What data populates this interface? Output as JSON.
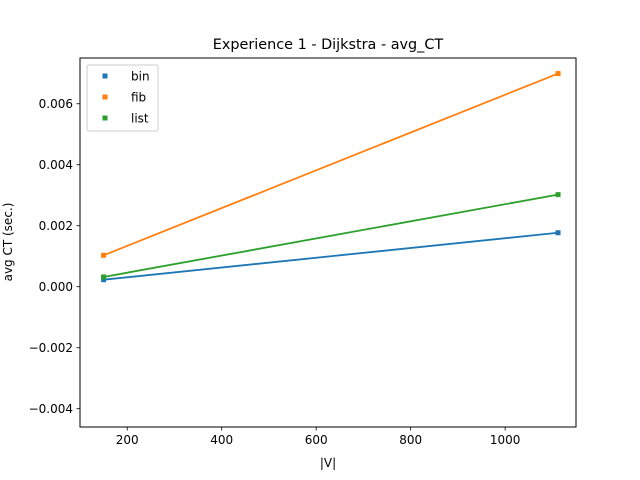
{
  "chart_data": {
    "type": "line",
    "title": "Experience 1 - Dijkstra - avg_CT",
    "xlabel": "|V|",
    "ylabel": "avg CT (sec.)",
    "xlim": [
      100,
      1150
    ],
    "ylim": [
      -0.0046,
      0.0075
    ],
    "xticks": [
      200,
      400,
      600,
      800,
      1000
    ],
    "xtick_labels": [
      "200",
      "400",
      "600",
      "800",
      "1000"
    ],
    "yticks": [
      -0.004,
      -0.002,
      0.0,
      0.002,
      0.004,
      0.006
    ],
    "ytick_labels": [
      "−0.004",
      "−0.002",
      "0.000",
      "0.002",
      "0.004",
      "0.006"
    ],
    "grid": false,
    "legend_position": "top-left",
    "series": [
      {
        "name": "bin",
        "color": "#1f77b4",
        "x": [
          150,
          1112
        ],
        "y": [
          0.00023,
          0.00177
        ]
      },
      {
        "name": "fib",
        "color": "#ff7f0e",
        "x": [
          150,
          1112
        ],
        "y": [
          0.00103,
          0.00699
        ]
      },
      {
        "name": "list",
        "color": "#2ca02c",
        "x": [
          150,
          1112
        ],
        "y": [
          0.00032,
          0.00302
        ]
      }
    ]
  }
}
